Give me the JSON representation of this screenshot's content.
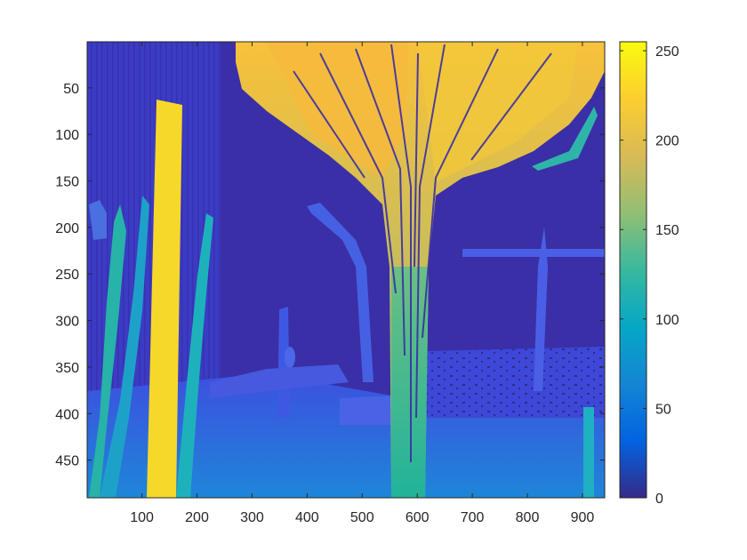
{
  "chart_data": {
    "type": "heatmap",
    "title": "",
    "xlabel": "",
    "ylabel": "",
    "x_ticks": [
      100,
      200,
      300,
      400,
      500,
      600,
      700,
      800,
      900
    ],
    "y_ticks": [
      50,
      100,
      150,
      200,
      250,
      300,
      350,
      400,
      450
    ],
    "xlim": [
      0.5,
      940.5
    ],
    "ylim": [
      0.5,
      490.5
    ],
    "y_direction": "reverse",
    "colormap": "parula",
    "colorbar": {
      "ticks": [
        0,
        50,
        100,
        150,
        200,
        250
      ],
      "range": [
        0,
        255
      ]
    },
    "grid": false,
    "regions": {
      "background": 20,
      "tall_pole_left": 230,
      "tree_canopy_top": 215,
      "tree_canopy_sides": 160,
      "tree_trunk": 140,
      "left_leaves": 110,
      "ground_foreground": 70,
      "ground_far": 45,
      "far_objects": 40,
      "right_post": 115
    }
  }
}
